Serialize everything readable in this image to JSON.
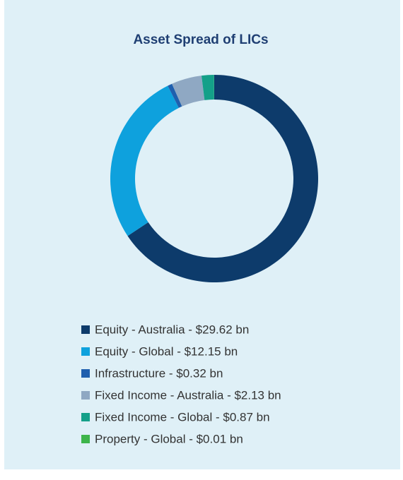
{
  "chart_data": {
    "type": "donut",
    "title": "Asset Spread of LICs",
    "categories": [
      "Equity - Australia - $29.62 bn",
      "Equity - Global - $12.15 bn",
      "Infrastructure - $0.32 bn",
      "Fixed Income - Australia - $2.13 bn",
      "Fixed Income - Global - $0.87 bn",
      "Property - Global - $0.01 bn"
    ],
    "values": [
      29.62,
      12.15,
      0.32,
      2.13,
      0.87,
      0.01
    ],
    "colors": [
      "#0d3b6b",
      "#0ea1dd",
      "#1f5fae",
      "#8fa8c3",
      "#14a089",
      "#3db54b"
    ],
    "legend": "bottom"
  }
}
